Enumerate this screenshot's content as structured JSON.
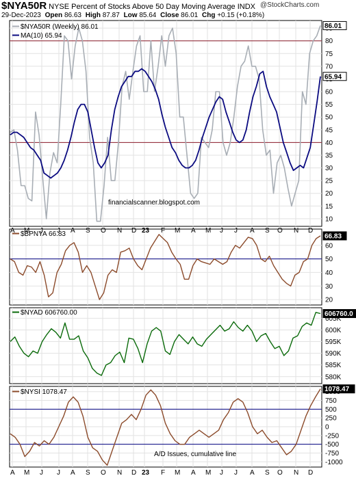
{
  "header": {
    "symbol": "$NYA50R",
    "title": "NYSE Percent of Stocks Above 50 Day Moving Average  INDX",
    "copyright": "@StockCharts.com",
    "date": "29-Dec-2023",
    "open_label": "Open",
    "open": "86.63",
    "high_label": "High",
    "high": "87.87",
    "low_label": "Low",
    "low": "85.64",
    "close_label": "Close",
    "close": "86.01",
    "chg_label": "Chg",
    "chg": "+0.15 (+0.18%)"
  },
  "colors": {
    "gray": "#a8aeb5",
    "navy": "#0a0a80",
    "brown": "#8b4a2a",
    "green": "#0a6a0a",
    "ref_line": "#8b1a2a",
    "hline": "#000080"
  },
  "chart_data": [
    {
      "type": "line",
      "panel": "main",
      "x_tick_labels": [
        "A",
        "M",
        "J",
        "J",
        "A",
        "S",
        "O",
        "N",
        "D",
        "23",
        "F",
        "M",
        "A",
        "M",
        "J",
        "J",
        "A",
        "S",
        "O",
        "N",
        "D"
      ],
      "y_ticks": [
        10,
        15,
        20,
        25,
        30,
        35,
        40,
        45,
        50,
        55,
        60,
        65,
        70,
        75,
        80,
        85
      ],
      "ylim": [
        7,
        88
      ],
      "reference_lines": [
        40,
        80
      ],
      "annotation": "financialscanner.blogspot.com",
      "series": [
        {
          "name": "$NYA50R (Weekly) 86.01",
          "legend_text": "$NYA50R (Weekly) 86.01",
          "last_value": "86.01",
          "values": [
            44,
            45,
            37,
            23,
            23,
            18,
            17,
            52,
            43,
            26,
            10,
            28,
            36,
            32,
            55,
            82,
            80,
            65,
            78,
            85,
            80,
            68,
            42,
            32,
            9,
            9,
            23,
            42,
            25,
            25,
            40,
            62,
            68,
            57,
            68,
            78,
            82,
            60,
            60,
            80,
            60,
            70,
            82,
            70,
            82,
            85,
            75,
            50,
            50,
            35,
            20,
            18,
            20,
            42,
            40,
            38,
            45,
            60,
            60,
            40,
            35,
            40,
            50,
            62,
            70,
            72,
            78,
            70,
            70,
            65,
            45,
            35,
            37,
            20,
            32,
            35,
            30,
            22,
            15,
            20,
            25,
            60,
            55,
            75,
            80,
            82,
            86
          ]
        },
        {
          "name": "MA(10) 65.94",
          "legend_text": "MA(10) 65.94",
          "last_value": "65.94",
          "values": [
            43,
            44,
            44,
            43,
            42,
            40,
            38,
            37,
            35,
            33,
            28,
            27,
            26,
            27,
            28,
            30,
            33,
            37,
            42,
            48,
            53,
            55,
            55,
            52,
            45,
            38,
            32,
            30,
            32,
            35,
            45,
            53,
            58,
            62,
            64,
            66,
            66,
            68,
            68,
            69,
            68,
            66,
            64,
            61,
            57,
            51,
            46,
            42,
            38,
            36,
            33,
            31,
            30,
            30,
            31,
            33,
            37,
            42,
            46,
            50,
            53,
            56,
            58,
            57,
            52,
            48,
            44,
            41,
            40,
            41,
            45,
            52,
            58,
            62,
            67,
            68,
            62,
            58,
            55,
            52,
            46,
            40,
            36,
            32,
            29,
            30,
            31,
            30,
            34,
            38,
            47,
            56,
            66
          ]
        }
      ]
    },
    {
      "type": "line",
      "panel": "bpnya",
      "y_ticks": [
        20,
        30,
        40,
        50,
        60
      ],
      "ylim": [
        16,
        72
      ],
      "reference_lines": [
        50
      ],
      "series": [
        {
          "name": "$BPNYA 66.83",
          "legend_text": "$BPNYA 66.83",
          "last_value": "66.83",
          "values": [
            50,
            48,
            40,
            38,
            45,
            44,
            40,
            48,
            38,
            22,
            25,
            40,
            46,
            56,
            60,
            62,
            55,
            40,
            45,
            40,
            30,
            20,
            25,
            38,
            42,
            40,
            55,
            56,
            58,
            50,
            45,
            42,
            50,
            58,
            63,
            68,
            65,
            62,
            55,
            50,
            46,
            35,
            35,
            45,
            50,
            48,
            47,
            46,
            50,
            48,
            46,
            48,
            55,
            60,
            58,
            62,
            66,
            65,
            60,
            50,
            48,
            52,
            45,
            40,
            35,
            32,
            30,
            38,
            40,
            48,
            50,
            60,
            65,
            67
          ]
        }
      ]
    },
    {
      "type": "line",
      "panel": "nyad",
      "y_ticks": [
        "580K",
        "585K",
        "590K",
        "595K",
        "600K",
        "605K"
      ],
      "ylim": [
        577000,
        609500
      ],
      "series": [
        {
          "name": "$NYAD 606760.00",
          "legend_text": "$NYAD 606760.00",
          "last_value": "606760.0",
          "values": [
            595000,
            597000,
            593000,
            590000,
            588500,
            591000,
            590000,
            595000,
            598000,
            600500,
            599000,
            596500,
            603000,
            596000,
            596000,
            597500,
            591000,
            588000,
            583500,
            581500,
            580500,
            585000,
            586000,
            589000,
            590500,
            586000,
            596500,
            596000,
            592000,
            586000,
            594000,
            599500,
            601000,
            599500,
            591000,
            589500,
            595000,
            598000,
            596000,
            594000,
            597000,
            594000,
            593000,
            596000,
            598000,
            600000,
            602000,
            599500,
            600500,
            603500,
            601000,
            599500,
            602000,
            599500,
            595000,
            597500,
            598500,
            595000,
            592000,
            593000,
            589000,
            591000,
            596500,
            597500,
            601500,
            603000,
            602000,
            607500,
            607000
          ]
        }
      ]
    },
    {
      "type": "line",
      "panel": "nysi",
      "y_ticks": [
        -1000,
        -750,
        -500,
        -250,
        0,
        250,
        500,
        750,
        1000
      ],
      "ylim": [
        -1150,
        1150
      ],
      "reference_lines": [
        -500,
        500
      ],
      "annotation": "A/D Issues, cumulative line",
      "series": [
        {
          "name": "$NYSI 1078.47",
          "legend_text": "$NYSI 1078.47",
          "last_value": "1078.47",
          "values": [
            -200,
            -300,
            -500,
            -850,
            -700,
            -450,
            -550,
            -400,
            -500,
            -300,
            0,
            300,
            700,
            850,
            700,
            300,
            -300,
            -600,
            -700,
            -950,
            -1100,
            -700,
            -300,
            100,
            200,
            350,
            200,
            500,
            900,
            1050,
            900,
            600,
            100,
            -200,
            -400,
            -500,
            -500,
            -300,
            -200,
            -100,
            -200,
            -300,
            -200,
            -100,
            200,
            400,
            700,
            800,
            700,
            400,
            0,
            -200,
            -100,
            -300,
            -450,
            -400,
            -600,
            -800,
            -700,
            -500,
            -100,
            300,
            600,
            850,
            1078
          ]
        }
      ]
    }
  ]
}
